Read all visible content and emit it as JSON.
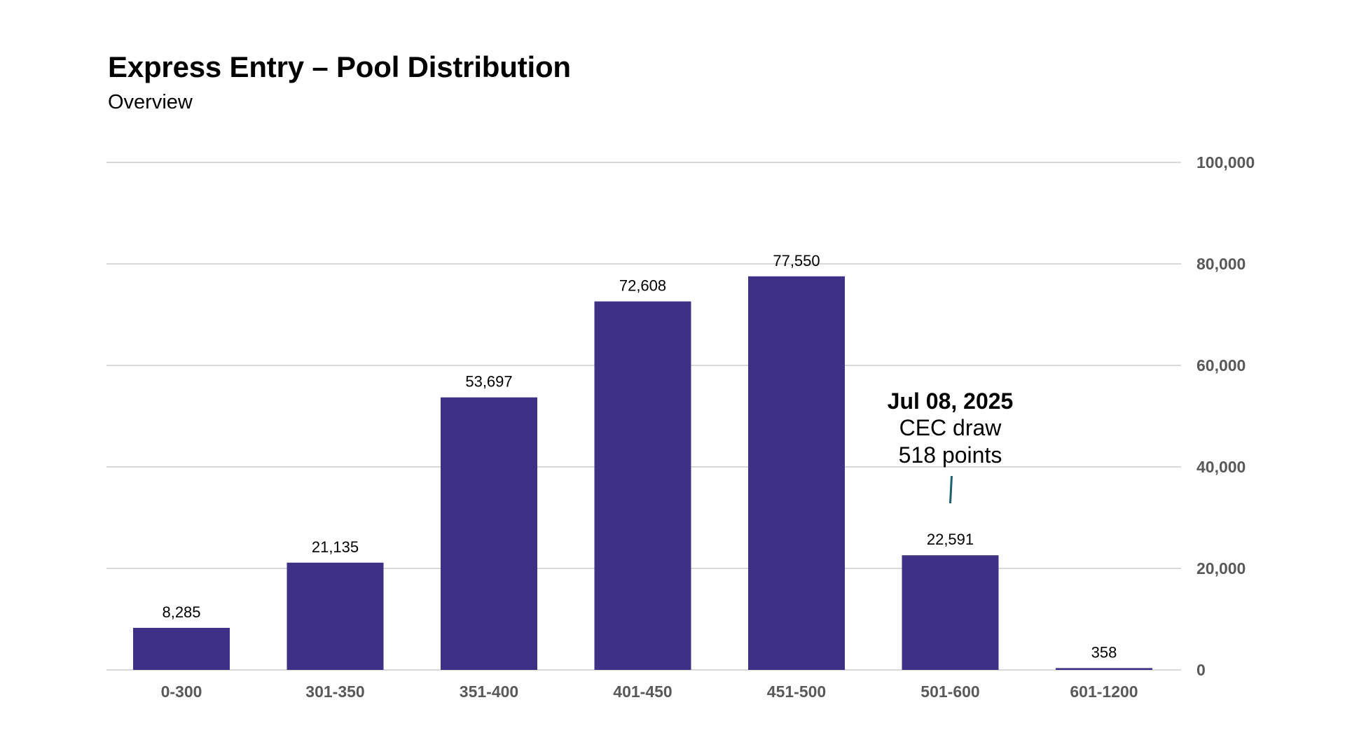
{
  "title": "Express Entry – Pool Distribution",
  "subtitle": "Overview",
  "chart_data": {
    "type": "bar",
    "title": "Express Entry – Pool Distribution",
    "subtitle": "Overview",
    "categories": [
      "0-300",
      "301-350",
      "351-400",
      "401-450",
      "451-500",
      "501-600",
      "601-1200"
    ],
    "values": [
      8285,
      21135,
      53697,
      72608,
      77550,
      22591,
      358
    ],
    "data_labels": [
      "8,285",
      "21,135",
      "53,697",
      "72,608",
      "77,550",
      "22,591",
      "358"
    ],
    "xlabel": "",
    "ylabel": "",
    "ylim": [
      0,
      100000
    ],
    "y_ticks": [
      0,
      20000,
      40000,
      60000,
      80000,
      100000
    ],
    "y_tick_labels": [
      "0",
      "20,000",
      "40,000",
      "60,000",
      "80,000",
      "100,000"
    ],
    "y_axis_side": "right",
    "grid": true,
    "legend": false,
    "bar_color": "#3e3185",
    "annotation": {
      "category": "501-600",
      "lines": [
        "Jul 08, 2025",
        "CEC draw",
        "518 points"
      ],
      "pointer_color": "#1f5f6e"
    }
  }
}
